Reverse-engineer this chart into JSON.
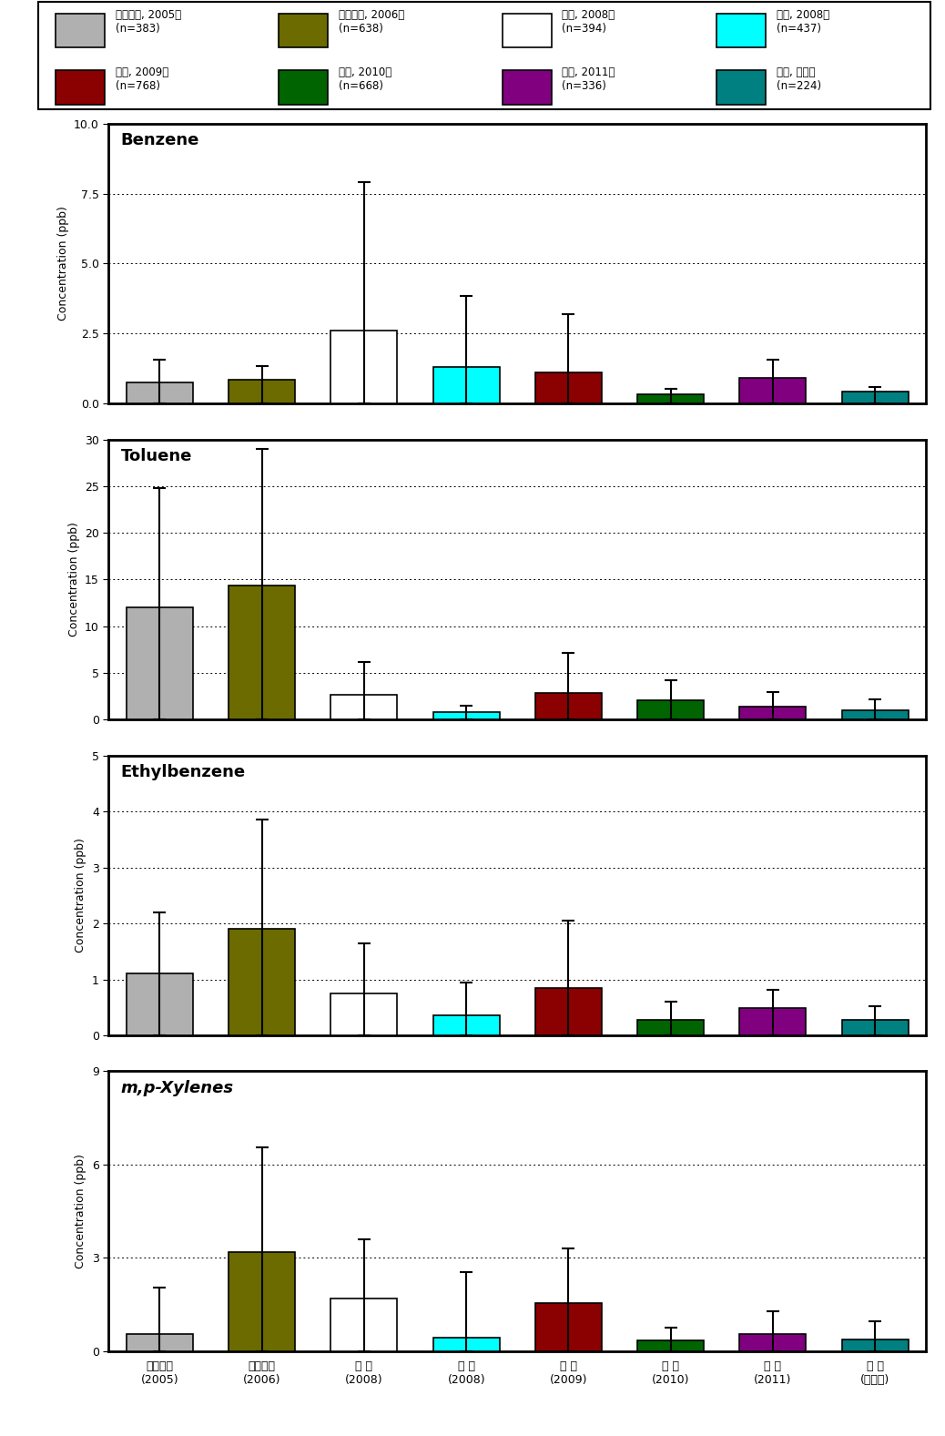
{
  "legend": {
    "labels_row1": [
      "시화반월, 2005년\n(n=383)",
      "시화반월, 2006년\n(n=638)",
      "여수, 2008년\n(n=394)",
      "광양, 2008년\n(n=437)"
    ],
    "labels_row2": [
      "울산, 2009년\n(n=768)",
      "구미, 2010년\n(n=668)",
      "대산, 2011년\n(n=336)",
      "포항, 본연구\n(n=224)"
    ],
    "colors": [
      "#b0b0b0",
      "#6b6b00",
      "#ffffff",
      "#00ffff",
      "#8b0000",
      "#006400",
      "#800080",
      "#008080"
    ]
  },
  "x_labels": [
    "시화반월\n(2005)",
    "시화반월\n(2006)",
    "여 수\n(2008)",
    "광 양\n(2008)",
    "울 산\n(2009)",
    "구 미\n(2010)",
    "대 산\n(2011)",
    "포 항\n(본연구)"
  ],
  "bar_colors": [
    "#b0b0b0",
    "#6b6b00",
    "#ffffff",
    "#00ffff",
    "#8b0000",
    "#006400",
    "#800080",
    "#008080"
  ],
  "charts": [
    {
      "title": "Benzene",
      "title_style": "bold",
      "ylabel": "Concentration (ppb)",
      "ylim": [
        0,
        10.0
      ],
      "yticks": [
        0.0,
        2.5,
        5.0,
        7.5,
        10.0
      ],
      "bar_values": [
        0.75,
        0.85,
        2.6,
        1.3,
        1.1,
        0.32,
        0.9,
        0.42
      ],
      "error_high": [
        1.55,
        1.35,
        7.9,
        3.85,
        3.2,
        0.52,
        1.55,
        0.6
      ],
      "error_low": [
        0.0,
        0.0,
        0.0,
        0.0,
        0.0,
        0.0,
        0.0,
        0.0
      ]
    },
    {
      "title": "Toluene",
      "title_style": "bold",
      "ylabel": "Concentration (ppb)",
      "ylim": [
        0,
        30
      ],
      "yticks": [
        0,
        5,
        10,
        15,
        20,
        25,
        30
      ],
      "bar_values": [
        12.0,
        14.3,
        2.6,
        0.8,
        2.8,
        2.1,
        1.4,
        1.0
      ],
      "error_high": [
        24.8,
        29.0,
        6.2,
        1.5,
        7.1,
        4.2,
        2.9,
        2.2
      ],
      "error_low": [
        0.0,
        0.0,
        0.0,
        0.0,
        0.0,
        0.0,
        0.0,
        0.0
      ]
    },
    {
      "title": "Ethylbenzene",
      "title_style": "bold",
      "ylabel": "Concentration (ppb)",
      "ylim": [
        0,
        5
      ],
      "yticks": [
        0,
        1,
        2,
        3,
        4,
        5
      ],
      "bar_values": [
        1.1,
        1.9,
        0.75,
        0.35,
        0.85,
        0.28,
        0.48,
        0.28
      ],
      "error_high": [
        2.2,
        3.85,
        1.65,
        0.95,
        2.05,
        0.6,
        0.82,
        0.52
      ],
      "error_low": [
        0.0,
        0.0,
        0.0,
        0.0,
        0.0,
        0.0,
        0.0,
        0.0
      ]
    },
    {
      "title": "m,p-Xylenes",
      "title_style": "bolditalic",
      "ylabel": "Concentration (ppb)",
      "ylim": [
        0,
        9
      ],
      "yticks": [
        0,
        3,
        6,
        9
      ],
      "bar_values": [
        0.55,
        3.2,
        1.7,
        0.45,
        1.55,
        0.35,
        0.55,
        0.38
      ],
      "error_high": [
        2.05,
        6.55,
        3.6,
        2.55,
        3.3,
        0.75,
        1.3,
        0.95
      ],
      "error_low": [
        0.0,
        0.0,
        0.0,
        0.0,
        0.0,
        0.0,
        0.0,
        0.0
      ]
    }
  ]
}
